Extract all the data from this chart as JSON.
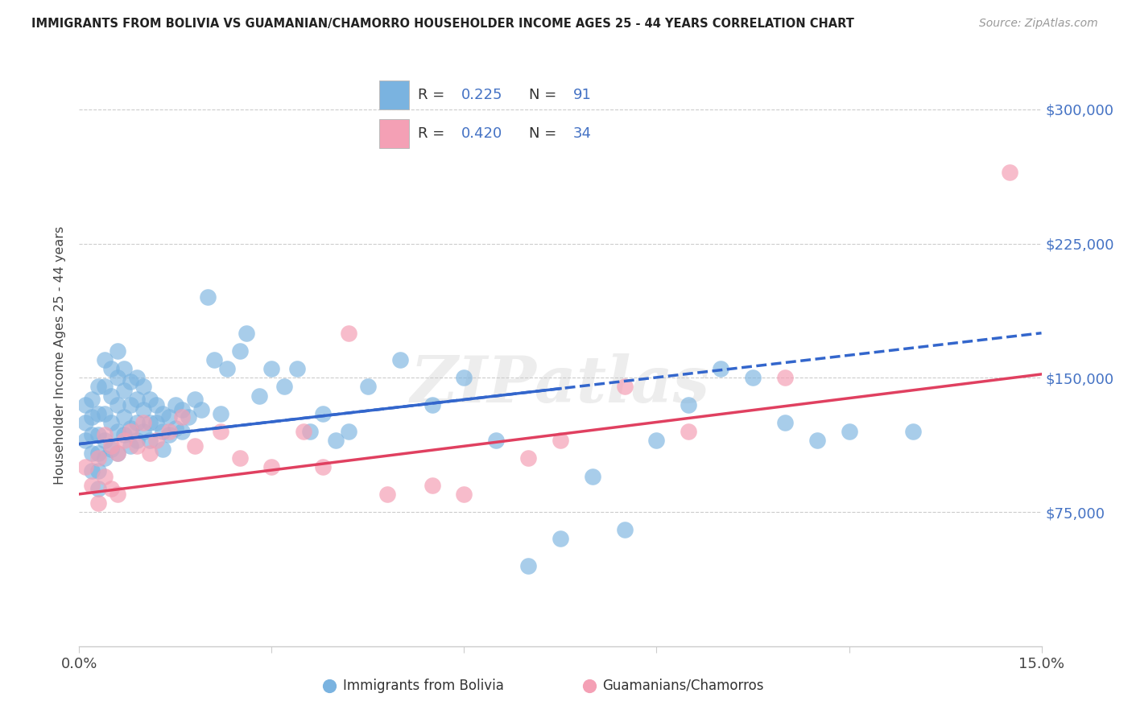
{
  "title": "IMMIGRANTS FROM BOLIVIA VS GUAMANIAN/CHAMORRO HOUSEHOLDER INCOME AGES 25 - 44 YEARS CORRELATION CHART",
  "source": "Source: ZipAtlas.com",
  "ylabel": "Householder Income Ages 25 - 44 years",
  "xlim": [
    0.0,
    0.15
  ],
  "ylim": [
    0,
    325000
  ],
  "ytick_values": [
    75000,
    150000,
    225000,
    300000
  ],
  "bolivia_R": 0.225,
  "bolivia_N": 91,
  "guam_R": 0.42,
  "guam_N": 34,
  "blue_scatter": "#7ab3e0",
  "pink_scatter": "#f4a0b5",
  "trendline_blue": "#3366cc",
  "trendline_pink": "#e04060",
  "grid_color": "#cccccc",
  "legend_label_1": "Immigrants from Bolivia",
  "legend_label_2": "Guamanians/Chamorros",
  "blue_line_x0": 0.0,
  "blue_line_y0": 113000,
  "blue_line_x1": 0.15,
  "blue_line_y1": 175000,
  "pink_line_x0": 0.0,
  "pink_line_y0": 85000,
  "pink_line_x1": 0.15,
  "pink_line_y1": 152000,
  "bolivia_x": [
    0.001,
    0.001,
    0.001,
    0.002,
    0.002,
    0.002,
    0.002,
    0.002,
    0.003,
    0.003,
    0.003,
    0.003,
    0.003,
    0.003,
    0.004,
    0.004,
    0.004,
    0.004,
    0.004,
    0.005,
    0.005,
    0.005,
    0.005,
    0.006,
    0.006,
    0.006,
    0.006,
    0.006,
    0.007,
    0.007,
    0.007,
    0.007,
    0.008,
    0.008,
    0.008,
    0.008,
    0.009,
    0.009,
    0.009,
    0.009,
    0.01,
    0.01,
    0.01,
    0.011,
    0.011,
    0.011,
    0.012,
    0.012,
    0.013,
    0.013,
    0.013,
    0.014,
    0.014,
    0.015,
    0.015,
    0.016,
    0.016,
    0.017,
    0.018,
    0.019,
    0.02,
    0.021,
    0.022,
    0.023,
    0.025,
    0.026,
    0.028,
    0.03,
    0.032,
    0.034,
    0.036,
    0.038,
    0.04,
    0.042,
    0.045,
    0.05,
    0.055,
    0.06,
    0.065,
    0.07,
    0.075,
    0.08,
    0.085,
    0.09,
    0.095,
    0.1,
    0.105,
    0.11,
    0.115,
    0.12,
    0.13
  ],
  "bolivia_y": [
    125000,
    135000,
    115000,
    128000,
    138000,
    118000,
    108000,
    98000,
    145000,
    130000,
    118000,
    108000,
    98000,
    88000,
    160000,
    145000,
    130000,
    115000,
    105000,
    155000,
    140000,
    125000,
    110000,
    165000,
    150000,
    135000,
    120000,
    108000,
    155000,
    143000,
    128000,
    118000,
    148000,
    135000,
    122000,
    112000,
    150000,
    138000,
    125000,
    115000,
    145000,
    132000,
    120000,
    138000,
    125000,
    115000,
    135000,
    125000,
    130000,
    120000,
    110000,
    128000,
    118000,
    135000,
    122000,
    132000,
    120000,
    128000,
    138000,
    132000,
    195000,
    160000,
    130000,
    155000,
    165000,
    175000,
    140000,
    155000,
    145000,
    155000,
    120000,
    130000,
    115000,
    120000,
    145000,
    160000,
    135000,
    150000,
    115000,
    45000,
    60000,
    95000,
    65000,
    115000,
    135000,
    155000,
    150000,
    125000,
    115000,
    120000,
    120000
  ],
  "guam_x": [
    0.001,
    0.002,
    0.003,
    0.003,
    0.004,
    0.004,
    0.005,
    0.005,
    0.006,
    0.006,
    0.007,
    0.008,
    0.009,
    0.01,
    0.011,
    0.012,
    0.014,
    0.016,
    0.018,
    0.022,
    0.025,
    0.03,
    0.035,
    0.038,
    0.042,
    0.048,
    0.055,
    0.06,
    0.07,
    0.075,
    0.085,
    0.095,
    0.11,
    0.145
  ],
  "guam_y": [
    100000,
    90000,
    105000,
    80000,
    118000,
    95000,
    112000,
    88000,
    108000,
    85000,
    115000,
    120000,
    112000,
    125000,
    108000,
    115000,
    120000,
    128000,
    112000,
    120000,
    105000,
    100000,
    120000,
    100000,
    175000,
    85000,
    90000,
    85000,
    105000,
    115000,
    145000,
    120000,
    150000,
    265000
  ]
}
